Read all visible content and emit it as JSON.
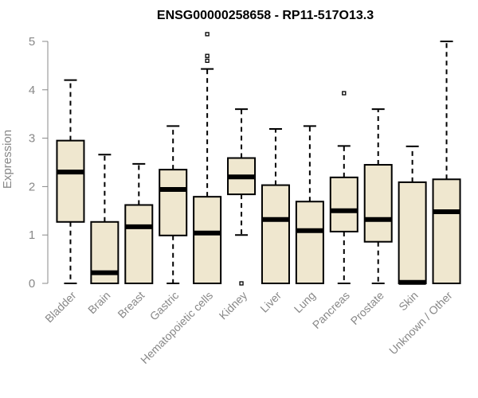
{
  "chart_data": {
    "type": "boxplot",
    "title": "ENSG00000258658 - RP11-517O13.3",
    "xlabel": "",
    "ylabel": "Expression",
    "ylim": [
      0,
      5.2
    ],
    "yticks": [
      0,
      1,
      2,
      3,
      4,
      5
    ],
    "grid": false,
    "colors": {
      "box_fill": "#efe7cf",
      "stroke": "#000000",
      "axis": "#888888"
    },
    "categories": [
      "Bladder",
      "Brain",
      "Breast",
      "Gastric",
      "Hematopoietic cells",
      "Kidney",
      "Liver",
      "Lung",
      "Pancreas",
      "Prostate",
      "Skin",
      "Unknown / Other"
    ],
    "boxes": [
      {
        "name": "Bladder",
        "whisker_low": 0,
        "q1": 1.27,
        "median": 2.3,
        "q3": 2.95,
        "whisker_high": 4.2,
        "outliers": []
      },
      {
        "name": "Brain",
        "whisker_low": 0,
        "q1": 0,
        "median": 0.22,
        "q3": 1.27,
        "whisker_high": 2.66,
        "outliers": []
      },
      {
        "name": "Breast",
        "whisker_low": 0,
        "q1": 0,
        "median": 1.17,
        "q3": 1.62,
        "whisker_high": 2.47,
        "outliers": []
      },
      {
        "name": "Gastric",
        "whisker_low": 0,
        "q1": 0.99,
        "median": 1.94,
        "q3": 2.35,
        "whisker_high": 3.25,
        "outliers": []
      },
      {
        "name": "Hematopoietic cells",
        "whisker_low": 0,
        "q1": 0,
        "median": 1.04,
        "q3": 1.79,
        "whisker_high": 4.43,
        "outliers": [
          4.6,
          4.7,
          5.15
        ]
      },
      {
        "name": "Kidney",
        "whisker_low": 1.0,
        "q1": 1.84,
        "median": 2.2,
        "q3": 2.59,
        "whisker_high": 3.6,
        "outliers": [
          0
        ]
      },
      {
        "name": "Liver",
        "whisker_low": 0,
        "q1": 0,
        "median": 1.32,
        "q3": 2.03,
        "whisker_high": 3.19,
        "outliers": []
      },
      {
        "name": "Lung",
        "whisker_low": 0,
        "q1": 0,
        "median": 1.09,
        "q3": 1.69,
        "whisker_high": 3.25,
        "outliers": []
      },
      {
        "name": "Pancreas",
        "whisker_low": 0,
        "q1": 1.07,
        "median": 1.5,
        "q3": 2.19,
        "whisker_high": 2.84,
        "outliers": [
          3.93
        ]
      },
      {
        "name": "Prostate",
        "whisker_low": 0,
        "q1": 0.86,
        "median": 1.32,
        "q3": 2.45,
        "whisker_high": 3.6,
        "outliers": []
      },
      {
        "name": "Skin",
        "whisker_low": 0,
        "q1": 0,
        "median": 0.02,
        "q3": 2.09,
        "whisker_high": 2.83,
        "outliers": []
      },
      {
        "name": "Unknown / Other",
        "whisker_low": 0,
        "q1": 0,
        "median": 1.48,
        "q3": 2.15,
        "whisker_high": 5.0,
        "outliers": []
      }
    ]
  }
}
